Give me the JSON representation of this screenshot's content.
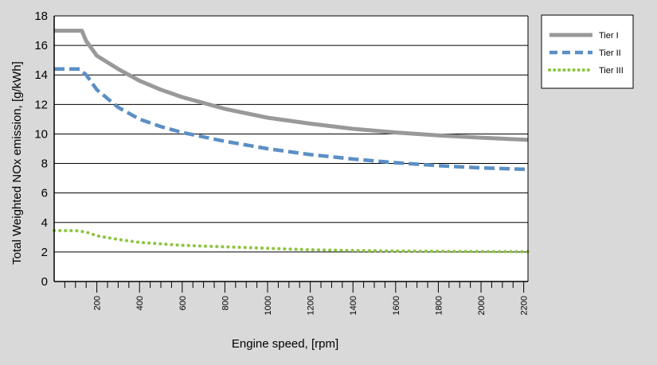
{
  "chart_data": {
    "type": "line",
    "xlabel": "Engine speed,  [rpm]",
    "ylabel": "Total Weighted NOx emission, [g/kWh]",
    "xlim": [
      0,
      2220
    ],
    "ylim": [
      0,
      18
    ],
    "x_ticks": [
      200,
      400,
      600,
      800,
      1000,
      1200,
      1400,
      1600,
      1800,
      2000,
      2200
    ],
    "y_ticks": [
      0,
      2,
      4,
      6,
      8,
      10,
      12,
      14,
      16,
      18
    ],
    "grid": "horizontal",
    "legend_position": "right",
    "series": [
      {
        "name": "Tier  I",
        "color": "#999999",
        "style": "solid",
        "x": [
          0,
          130,
          150,
          200,
          300,
          400,
          500,
          600,
          700,
          800,
          1000,
          1200,
          1400,
          1600,
          1800,
          2000,
          2220
        ],
        "values": [
          17.0,
          17.0,
          16.3,
          15.3,
          14.4,
          13.6,
          13.0,
          12.5,
          12.1,
          11.7,
          11.1,
          10.7,
          10.35,
          10.1,
          9.9,
          9.75,
          9.6
        ]
      },
      {
        "name": "Tier II",
        "color": "#5b8fc4",
        "style": "dashed",
        "x": [
          0,
          120,
          150,
          200,
          300,
          400,
          500,
          600,
          700,
          800,
          1000,
          1200,
          1400,
          1600,
          1800,
          2000,
          2220
        ],
        "values": [
          14.4,
          14.4,
          14.0,
          13.0,
          11.8,
          11.0,
          10.5,
          10.1,
          9.8,
          9.5,
          9.0,
          8.6,
          8.3,
          8.05,
          7.85,
          7.7,
          7.6
        ]
      },
      {
        "name": "Tier III",
        "color": "#8cc63f",
        "style": "dotted",
        "x": [
          0,
          100,
          150,
          200,
          300,
          400,
          500,
          600,
          700,
          800,
          1000,
          1200,
          1400,
          1600,
          1800,
          2000,
          2220
        ],
        "values": [
          3.45,
          3.45,
          3.35,
          3.1,
          2.85,
          2.65,
          2.55,
          2.45,
          2.4,
          2.35,
          2.25,
          2.15,
          2.1,
          2.07,
          2.05,
          2.03,
          2.02
        ]
      }
    ]
  }
}
